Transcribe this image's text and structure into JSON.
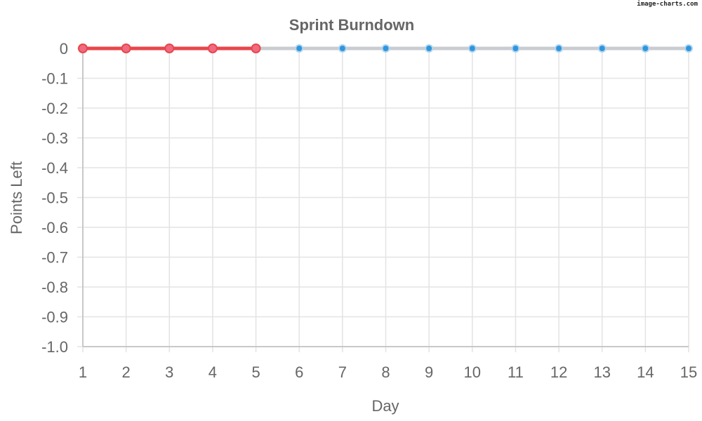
{
  "watermark": "image-charts.com",
  "chart_data": {
    "type": "line",
    "title": "Sprint Burndown",
    "xlabel": "Day",
    "ylabel": "Points Left",
    "x": [
      1,
      2,
      3,
      4,
      5,
      6,
      7,
      8,
      9,
      10,
      11,
      12,
      13,
      14,
      15
    ],
    "xlim": [
      1,
      15
    ],
    "ylim": [
      -1.0,
      0
    ],
    "yticks": [
      "0",
      "-0.1",
      "-0.2",
      "-0.3",
      "-0.4",
      "-0.5",
      "-0.6",
      "-0.7",
      "-0.8",
      "-0.9",
      "-1.0"
    ],
    "grid": true,
    "series": [
      {
        "values": [
          0,
          0,
          0,
          0,
          0
        ],
        "x": [
          1,
          2,
          3,
          4,
          5
        ],
        "line_color": "#e8464b",
        "point_color": "#f06a80",
        "point_border": "#e8464b"
      },
      {
        "values": [
          0,
          0,
          0,
          0,
          0,
          0,
          0,
          0,
          0,
          0,
          0
        ],
        "x": [
          5,
          6,
          7,
          8,
          9,
          10,
          11,
          12,
          13,
          14,
          15
        ],
        "line_color": "#c9cdd2",
        "point_color": "#2f96dc",
        "point_border": "#b4d6f0"
      }
    ]
  }
}
